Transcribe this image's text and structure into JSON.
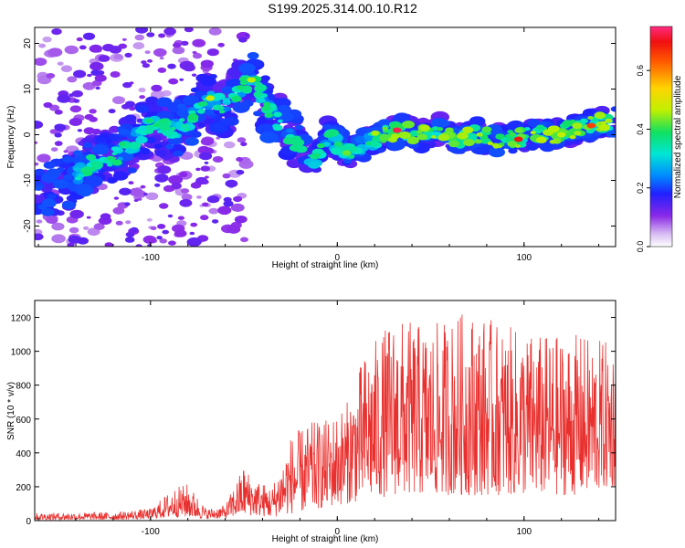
{
  "title": "S199.2025.314.00.10.R12",
  "chart_data": [
    {
      "type": "heatmap",
      "name": "spectrogram",
      "xlabel": "Height of straight line (km)",
      "ylabel": "Frequency (Hz)",
      "xlim": [
        -162,
        149
      ],
      "ylim": [
        -24.5,
        23.5
      ],
      "xticks": [
        -100,
        0,
        100
      ],
      "yticks": [
        -20,
        -10,
        0,
        10,
        20
      ],
      "colorbar": {
        "label": "Normalized spectral amplitude",
        "range": [
          0.0,
          0.75
        ],
        "ticks": [
          0.0,
          0.2,
          0.4,
          0.6
        ]
      },
      "ridge": [
        {
          "x": -150,
          "f": -11
        },
        {
          "x": -140,
          "f": -9
        },
        {
          "x": -130,
          "f": -6
        },
        {
          "x": -120,
          "f": -5
        },
        {
          "x": -110,
          "f": -2
        },
        {
          "x": -100,
          "f": 2
        },
        {
          "x": -90,
          "f": 1
        },
        {
          "x": -80,
          "f": 2
        },
        {
          "x": -70,
          "f": 8
        },
        {
          "x": -60,
          "f": 6
        },
        {
          "x": -50,
          "f": 11
        },
        {
          "x": -45,
          "f": 12
        },
        {
          "x": -38,
          "f": 6
        },
        {
          "x": -30,
          "f": 2
        },
        {
          "x": -20,
          "f": -3
        },
        {
          "x": -12,
          "f": -6
        },
        {
          "x": -5,
          "f": 0
        },
        {
          "x": 5,
          "f": -4
        },
        {
          "x": 15,
          "f": -2
        },
        {
          "x": 25,
          "f": 0
        },
        {
          "x": 35,
          "f": 1
        },
        {
          "x": 45,
          "f": 0
        },
        {
          "x": 55,
          "f": 1
        },
        {
          "x": 65,
          "f": -1
        },
        {
          "x": 75,
          "f": 0
        },
        {
          "x": 85,
          "f": -1
        },
        {
          "x": 95,
          "f": -1
        },
        {
          "x": 105,
          "f": 0
        },
        {
          "x": 115,
          "f": 0
        },
        {
          "x": 125,
          "f": 1
        },
        {
          "x": 135,
          "f": 2
        },
        {
          "x": 145,
          "f": 3
        }
      ]
    },
    {
      "type": "line",
      "name": "snr",
      "xlabel": "Height of straight line (km)",
      "ylabel": "SNR (10 * v/v)",
      "xlim": [
        -162,
        149
      ],
      "ylim": [
        0,
        1300
      ],
      "xticks": [
        -100,
        0,
        100
      ],
      "yticks": [
        0,
        200,
        400,
        600,
        800,
        1000,
        1200
      ],
      "color": "#e8302e",
      "envelope": [
        {
          "x": -162,
          "lo": 5,
          "hi": 45
        },
        {
          "x": -120,
          "lo": 5,
          "hi": 50
        },
        {
          "x": -100,
          "lo": 10,
          "hi": 70
        },
        {
          "x": -88,
          "lo": 20,
          "hi": 190
        },
        {
          "x": -80,
          "lo": 20,
          "hi": 220
        },
        {
          "x": -70,
          "lo": 10,
          "hi": 70
        },
        {
          "x": -60,
          "lo": 15,
          "hi": 90
        },
        {
          "x": -50,
          "lo": 30,
          "hi": 330
        },
        {
          "x": -45,
          "lo": 30,
          "hi": 250
        },
        {
          "x": -35,
          "lo": 20,
          "hi": 200
        },
        {
          "x": -25,
          "lo": 40,
          "hi": 500
        },
        {
          "x": -15,
          "lo": 60,
          "hi": 580
        },
        {
          "x": -5,
          "lo": 80,
          "hi": 600
        },
        {
          "x": 5,
          "lo": 100,
          "hi": 700
        },
        {
          "x": 15,
          "lo": 120,
          "hi": 1000
        },
        {
          "x": 30,
          "lo": 150,
          "hi": 1200
        },
        {
          "x": 50,
          "lo": 150,
          "hi": 1150
        },
        {
          "x": 70,
          "lo": 150,
          "hi": 1250
        },
        {
          "x": 90,
          "lo": 150,
          "hi": 1150
        },
        {
          "x": 110,
          "lo": 150,
          "hi": 1100
        },
        {
          "x": 130,
          "lo": 150,
          "hi": 1100
        },
        {
          "x": 149,
          "lo": 200,
          "hi": 1050
        }
      ]
    }
  ]
}
